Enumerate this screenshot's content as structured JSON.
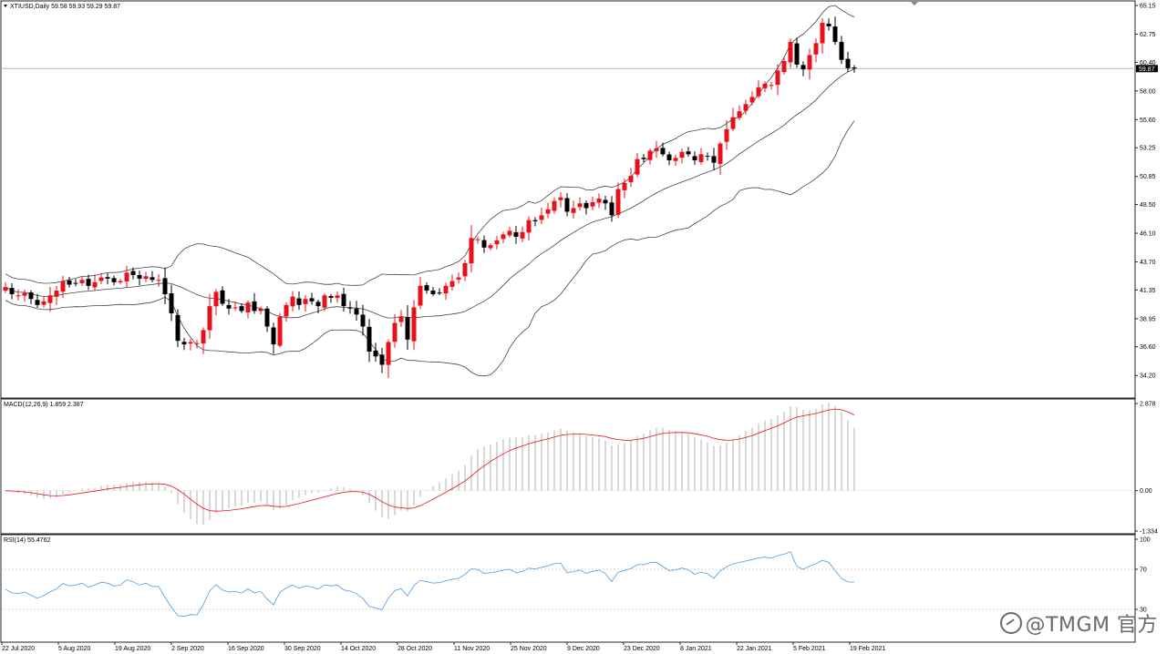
{
  "colors": {
    "bull": "#e8101a",
    "bear": "#000000",
    "macd_signal": "#e8101a",
    "rsi_line": "#4b9ce8",
    "hist": "#b0b0b0",
    "frame": "#222222"
  },
  "header": {
    "symbol_line": "XTIUSD,Daily  59.58 59.93 59.29 59.87"
  },
  "price_axis": {
    "labels": [
      "65.15",
      "62.75",
      "60.40",
      "58.00",
      "55.60",
      "53.25",
      "50.85",
      "48.50",
      "46.10",
      "43.70",
      "41.35",
      "38.95",
      "36.60",
      "34.20"
    ],
    "current_price_label": "59.87",
    "current_price": 59.87,
    "range": [
      33.0,
      65.15
    ]
  },
  "macd_panel": {
    "title": "MACD(12,26,9) 1.859 2.387",
    "axis_labels": [
      "2.878",
      "0.00",
      "-1.334"
    ],
    "range": [
      -1.334,
      2.878
    ]
  },
  "rsi_panel": {
    "title": "RSI(14) 55.4762",
    "axis_labels": [
      "100",
      "70",
      "30"
    ],
    "range": [
      0,
      100
    ]
  },
  "date_axis": {
    "labels": [
      "22 Jul 2020",
      "5 Aug 2020",
      "19 Aug 2020",
      "2 Sep 2020",
      "16 Sep 2020",
      "30 Sep 2020",
      "14 Oct 2020",
      "28 Oct 2020",
      "11 Nov 2020",
      "25 Nov 2020",
      "9 Dec 2020",
      "23 Dec 2020",
      "8 Jan 2021",
      "22 Jan 2021",
      "5 Feb 2021",
      "19 Feb 2021"
    ]
  },
  "watermark": {
    "text": "@TMGM 官方"
  },
  "chart_data": [
    {
      "type": "candlestick",
      "title": "XTIUSD,Daily",
      "overlay": "Bollinger Bands",
      "ylim": [
        33.0,
        65.15
      ],
      "closes": [
        41.6,
        41.0,
        40.9,
        41.1,
        40.6,
        40.1,
        40.4,
        40.9,
        41.3,
        42.1,
        41.8,
        41.9,
        42.2,
        41.7,
        42.0,
        42.4,
        42.3,
        42.0,
        42.1,
        42.8,
        42.6,
        42.3,
        42.5,
        42.2,
        42.2,
        41.0,
        39.4,
        37.1,
        36.8,
        37.0,
        36.9,
        38.0,
        40.0,
        41.2,
        40.2,
        39.8,
        39.9,
        39.6,
        40.3,
        39.6,
        39.8,
        38.3,
        36.8,
        39.1,
        40.1,
        40.8,
        40.1,
        40.6,
        40.4,
        40.0,
        40.9,
        40.7,
        40.9,
        40.0,
        39.8,
        39.3,
        38.3,
        36.2,
        35.8,
        35.1,
        37.0,
        38.6,
        39.1,
        37.2,
        39.9,
        41.7,
        41.3,
        41.0,
        41.1,
        41.7,
        42.1,
        42.4,
        43.6,
        45.7,
        45.6,
        44.9,
        45.1,
        45.5,
        46.0,
        46.3,
        45.8,
        46.2,
        47.2,
        47.1,
        47.6,
        48.1,
        48.8,
        49.1,
        47.9,
        48.2,
        48.6,
        48.2,
        48.7,
        49.0,
        48.6,
        47.6,
        49.8,
        50.3,
        50.9,
        52.3,
        52.3,
        53.0,
        53.2,
        52.7,
        52.2,
        52.4,
        52.9,
        52.7,
        52.2,
        52.7,
        52.5,
        52.0,
        53.6,
        54.8,
        55.8,
        56.3,
        56.9,
        57.5,
        58.3,
        58.6,
        58.5,
        59.7,
        60.5,
        62.1,
        60.2,
        59.8,
        61.0,
        62.0,
        63.7,
        63.4,
        62.1,
        60.6,
        59.9,
        59.87
      ],
      "macd_histogram_last": 1.859,
      "macd_signal_last": 2.387,
      "rsi_last": 55.4762
    }
  ]
}
